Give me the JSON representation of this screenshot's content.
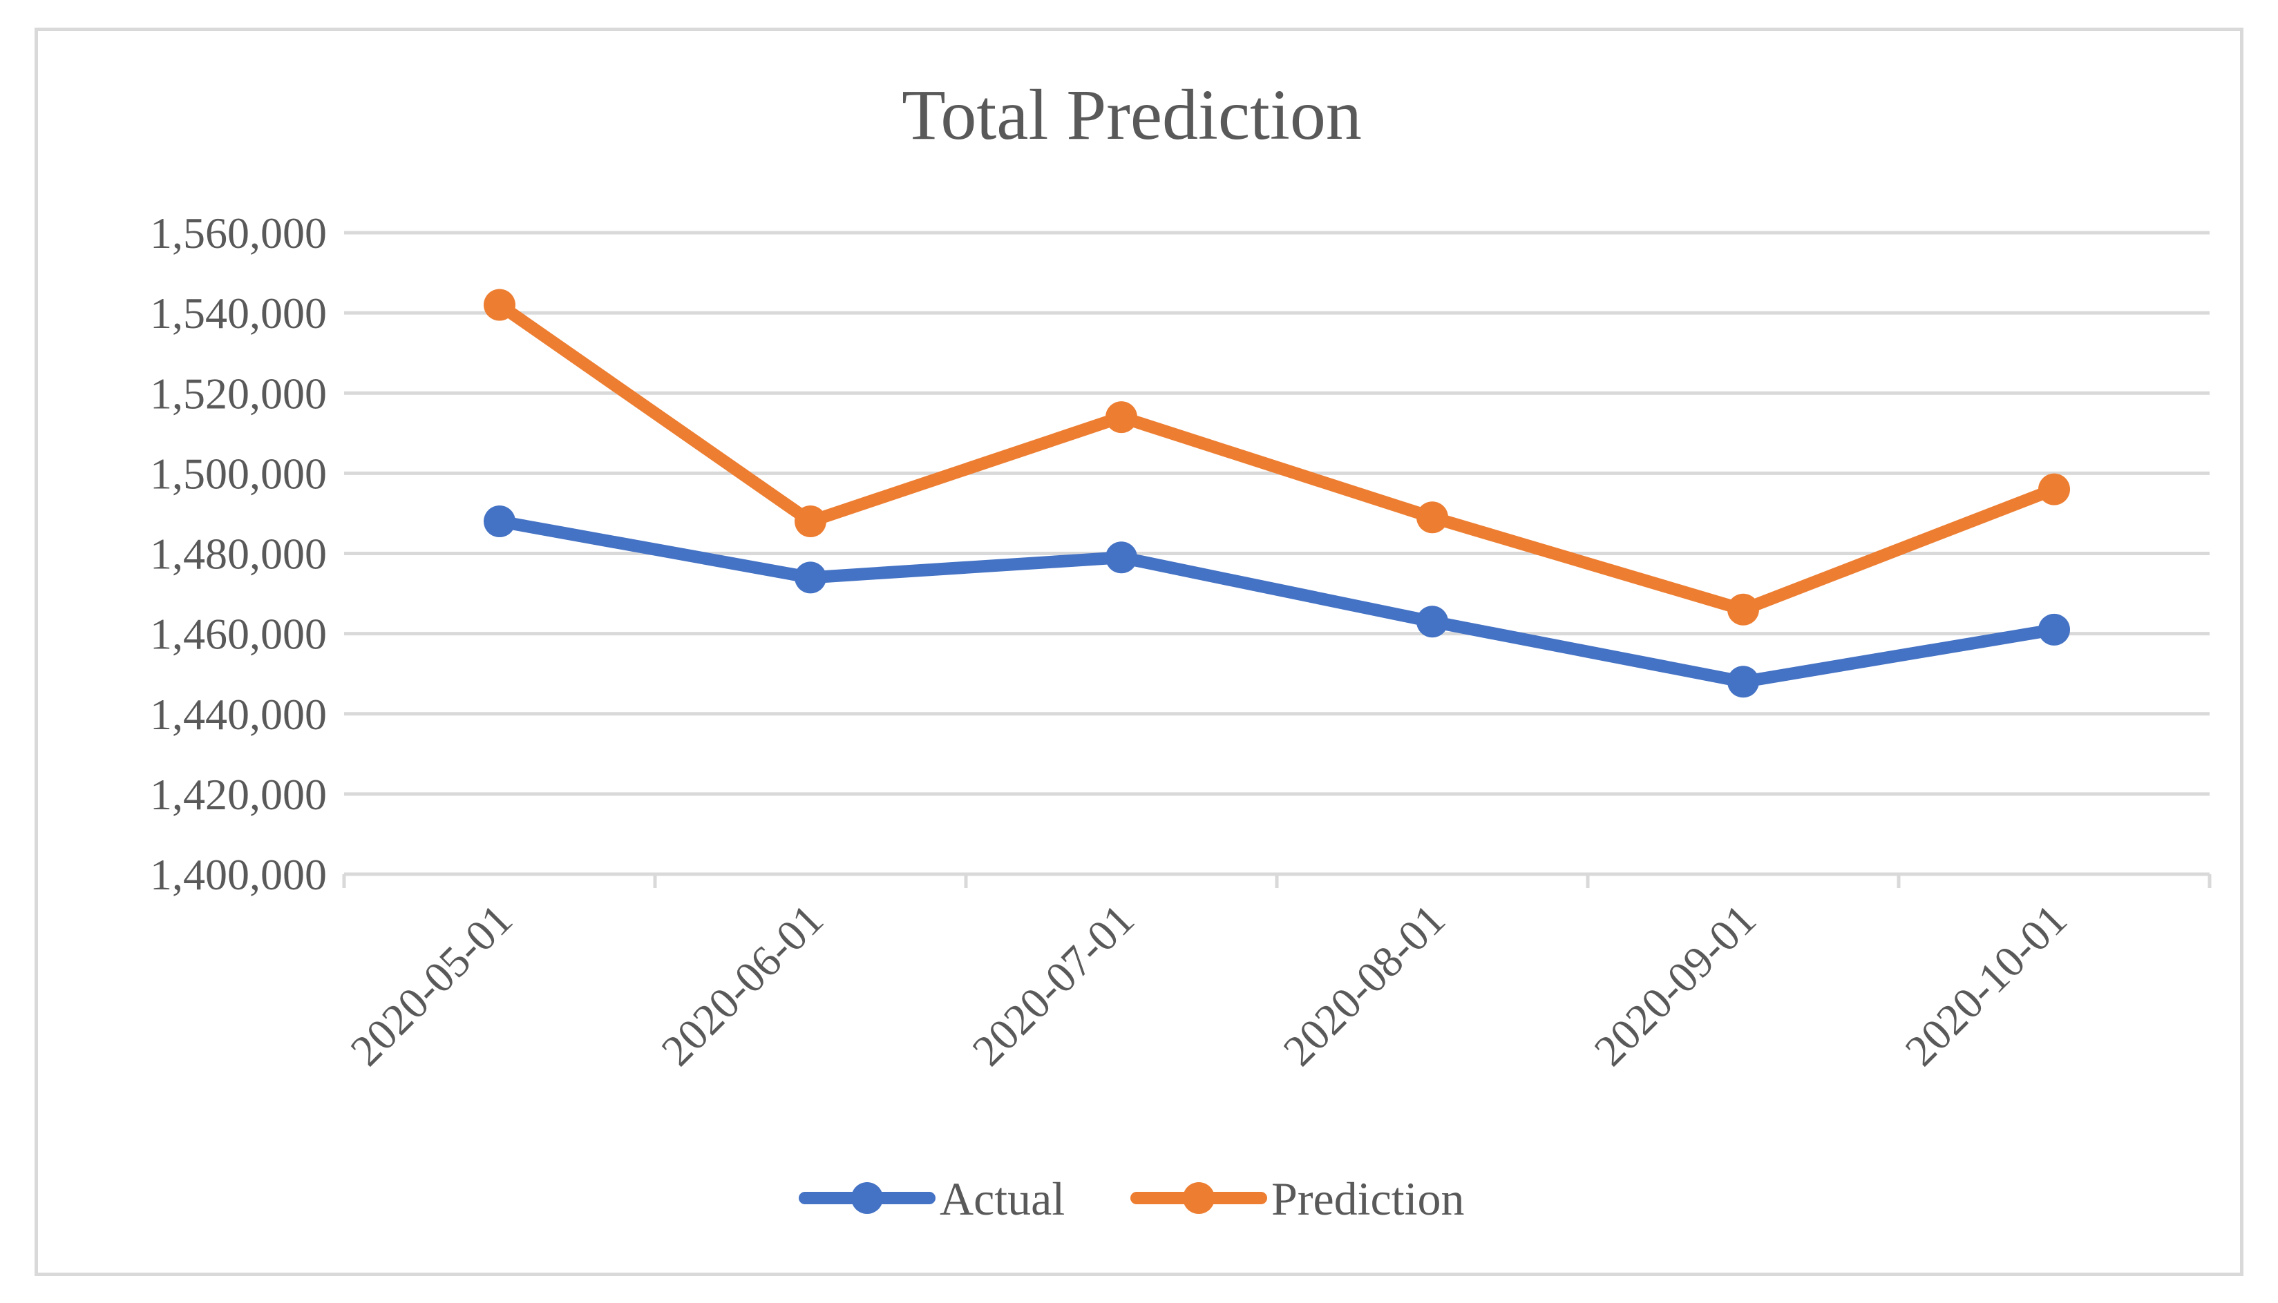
{
  "chart_data": {
    "type": "line",
    "title": "Total Prediction",
    "xlabel": "",
    "ylabel": "",
    "categories": [
      "2020-05-01",
      "2020-06-01",
      "2020-07-01",
      "2020-08-01",
      "2020-09-01",
      "2020-10-01"
    ],
    "y_ticks": [
      "1,400,000",
      "1,420,000",
      "1,440,000",
      "1,460,000",
      "1,480,000",
      "1,500,000",
      "1,520,000",
      "1,540,000",
      "1,560,000"
    ],
    "ylim": [
      1400000,
      1560000
    ],
    "grid": "horizontal",
    "legend_position": "bottom",
    "series": [
      {
        "name": "Actual",
        "color": "#4472c4",
        "values": [
          1488000,
          1474000,
          1479000,
          1463000,
          1448000,
          1461000
        ]
      },
      {
        "name": "Prediction",
        "color": "#ed7d31",
        "values": [
          1542000,
          1488000,
          1514000,
          1489000,
          1466000,
          1496000
        ]
      }
    ]
  }
}
